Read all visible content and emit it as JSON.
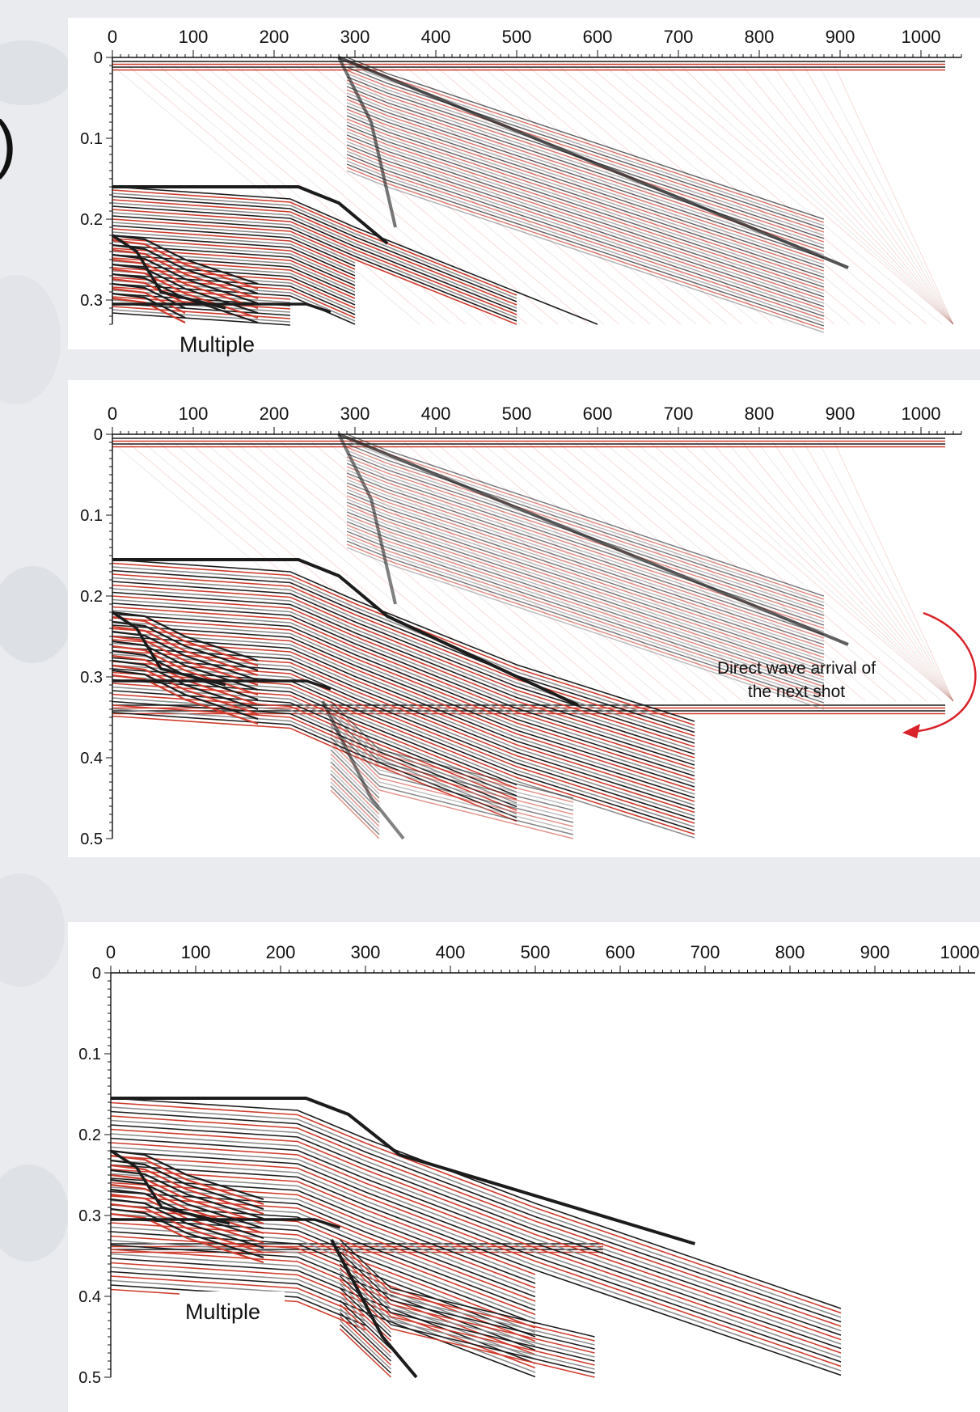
{
  "colors": {
    "background": "#e9ebef",
    "panel": "#ffffff",
    "dark_trace": "#1c1c1c",
    "red_trace": "#cf3b2c",
    "gray_trace": "#8d8d8d",
    "arrow": "#d8232a"
  },
  "corner_glyph": ")",
  "panels": [
    {
      "id": "top",
      "x_ticks": [
        "0",
        "100",
        "200",
        "300",
        "400",
        "500",
        "600",
        "700",
        "800",
        "900",
        "1000"
      ],
      "y_ticks": [
        "0",
        "0.1",
        "0.2",
        "0.3"
      ],
      "label": "Multiple"
    },
    {
      "id": "middle",
      "x_ticks": [
        "0",
        "100",
        "200",
        "300",
        "400",
        "500",
        "600",
        "700",
        "800",
        "900",
        "1000"
      ],
      "y_ticks": [
        "0",
        "0.1",
        "0.2",
        "0.3",
        "0.4",
        "0.5"
      ],
      "annotation_line1": "Direct wave arrival of",
      "annotation_line2": "the next shot"
    },
    {
      "id": "bottom",
      "x_ticks": [
        "0",
        "100",
        "200",
        "300",
        "400",
        "500",
        "600",
        "700",
        "800",
        "900",
        "1000"
      ],
      "y_ticks": [
        "0",
        "0.1",
        "0.2",
        "0.3",
        "0.4",
        "0.5"
      ],
      "label": "Multiple"
    }
  ]
}
